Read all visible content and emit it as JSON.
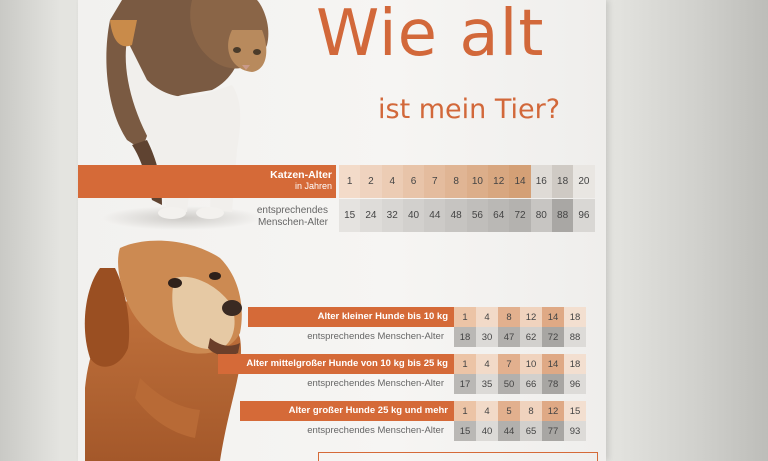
{
  "title": {
    "main": "Wie alt",
    "sub": "ist mein Tier?"
  },
  "cat": {
    "label": "Katzen-Alter",
    "label_sub": "in Jahren",
    "human_label_line1": "entsprechendes",
    "human_label_line2": "Menschen-Alter",
    "ages": [
      "1",
      "2",
      "4",
      "6",
      "7",
      "8",
      "10",
      "12",
      "14",
      "16",
      "18",
      "20"
    ],
    "human": [
      "15",
      "24",
      "32",
      "40",
      "44",
      "48",
      "56",
      "64",
      "72",
      "80",
      "88",
      "96"
    ]
  },
  "dogs": {
    "human_label": "entsprechendes Menschen-Alter",
    "small": {
      "label": "Alter kleiner Hunde bis 10 kg",
      "ages": [
        "1",
        "4",
        "8",
        "12",
        "14",
        "18"
      ],
      "human": [
        "18",
        "30",
        "47",
        "62",
        "72",
        "88"
      ]
    },
    "medium": {
      "label": "Alter mittelgroßer Hunde von 10 kg bis 25 kg",
      "ages": [
        "1",
        "4",
        "7",
        "10",
        "14",
        "18"
      ],
      "human": [
        "17",
        "35",
        "50",
        "66",
        "78",
        "96"
      ]
    },
    "large": {
      "label": "Alter großer Hunde 25 kg und mehr",
      "ages": [
        "1",
        "4",
        "5",
        "8",
        "12",
        "15"
      ],
      "human": [
        "15",
        "40",
        "44",
        "65",
        "77",
        "93"
      ]
    }
  },
  "colors": {
    "accent": "#d56a38",
    "cat_age_cells": [
      "#f3dbc9",
      "#efd3bf",
      "#ecccb4",
      "#e8c4a9",
      "#e4bc9e",
      "#e0b594",
      "#dcae8a",
      "#d8a780",
      "#d4a076",
      "#dfdbd6",
      "#cfcac4",
      "#e9e6e2"
    ],
    "cat_human_cells": [
      "#e5e3e0",
      "#dedcd9",
      "#d8d6d3",
      "#d2d0cd",
      "#cccac7",
      "#c6c4c1",
      "#c0bebb",
      "#bab8b5",
      "#b4b2af",
      "#c7c5c2",
      "#a9a7a4",
      "#d9d7d4"
    ],
    "dog_age_cells": [
      "#ecc4a6",
      "#f2dac8",
      "#e2b08e",
      "#f0d3be",
      "#dfa985",
      "#f3dfd0"
    ],
    "dog_human_cells": [
      "#bab8b5",
      "#dcdad7",
      "#b2b0ad",
      "#d2d0cd",
      "#a8a6a3",
      "#dddbd8"
    ]
  },
  "images": {
    "cat": "tabby-white-cat-photo",
    "dog": "golden-retriever-dog-photo"
  }
}
